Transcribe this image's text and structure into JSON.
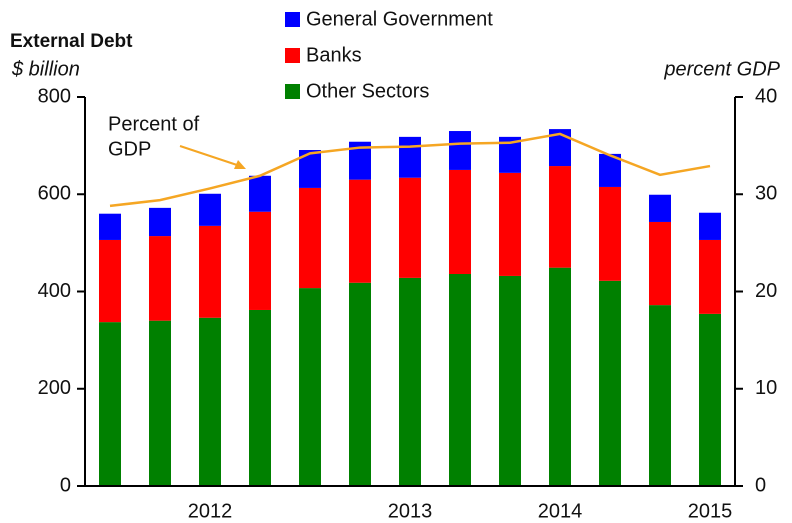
{
  "chart_data": {
    "type": "stacked_bar_line",
    "title": "External Debt",
    "y_label": "$ billion",
    "y2_label": "percent GDP",
    "annotation": [
      "Percent of",
      "GDP"
    ],
    "categories": [
      null,
      null,
      "2012",
      null,
      null,
      null,
      "2013",
      null,
      null,
      "2014",
      null,
      null,
      "2015"
    ],
    "series": [
      {
        "name": "General Government",
        "color": "#0000ff",
        "values": [
          54,
          58,
          66,
          74,
          78,
          78,
          84,
          80,
          74,
          76,
          68,
          56,
          56
        ]
      },
      {
        "name": "Banks",
        "color": "#ff0000",
        "values": [
          169,
          174,
          189,
          202,
          206,
          212,
          206,
          214,
          212,
          209,
          193,
          171,
          152
        ]
      },
      {
        "name": "Other Sectors",
        "color": "#008000",
        "values": [
          337,
          340,
          346,
          362,
          407,
          418,
          428,
          436,
          432,
          449,
          422,
          372,
          354
        ]
      },
      {
        "name": "Percent of GDP",
        "color": "#f5a623",
        "axis": "y2",
        "values": [
          28.8,
          29.4,
          30.6,
          31.9,
          34.2,
          34.8,
          34.9,
          35.2,
          35.3,
          36.2,
          34.0,
          32.0,
          32.9
        ]
      }
    ],
    "ylim": [
      0,
      800
    ],
    "yticks": [
      0,
      200,
      400,
      600,
      800
    ],
    "y2lim": [
      0,
      40
    ],
    "y2ticks": [
      0,
      10,
      20,
      30,
      40
    ]
  }
}
